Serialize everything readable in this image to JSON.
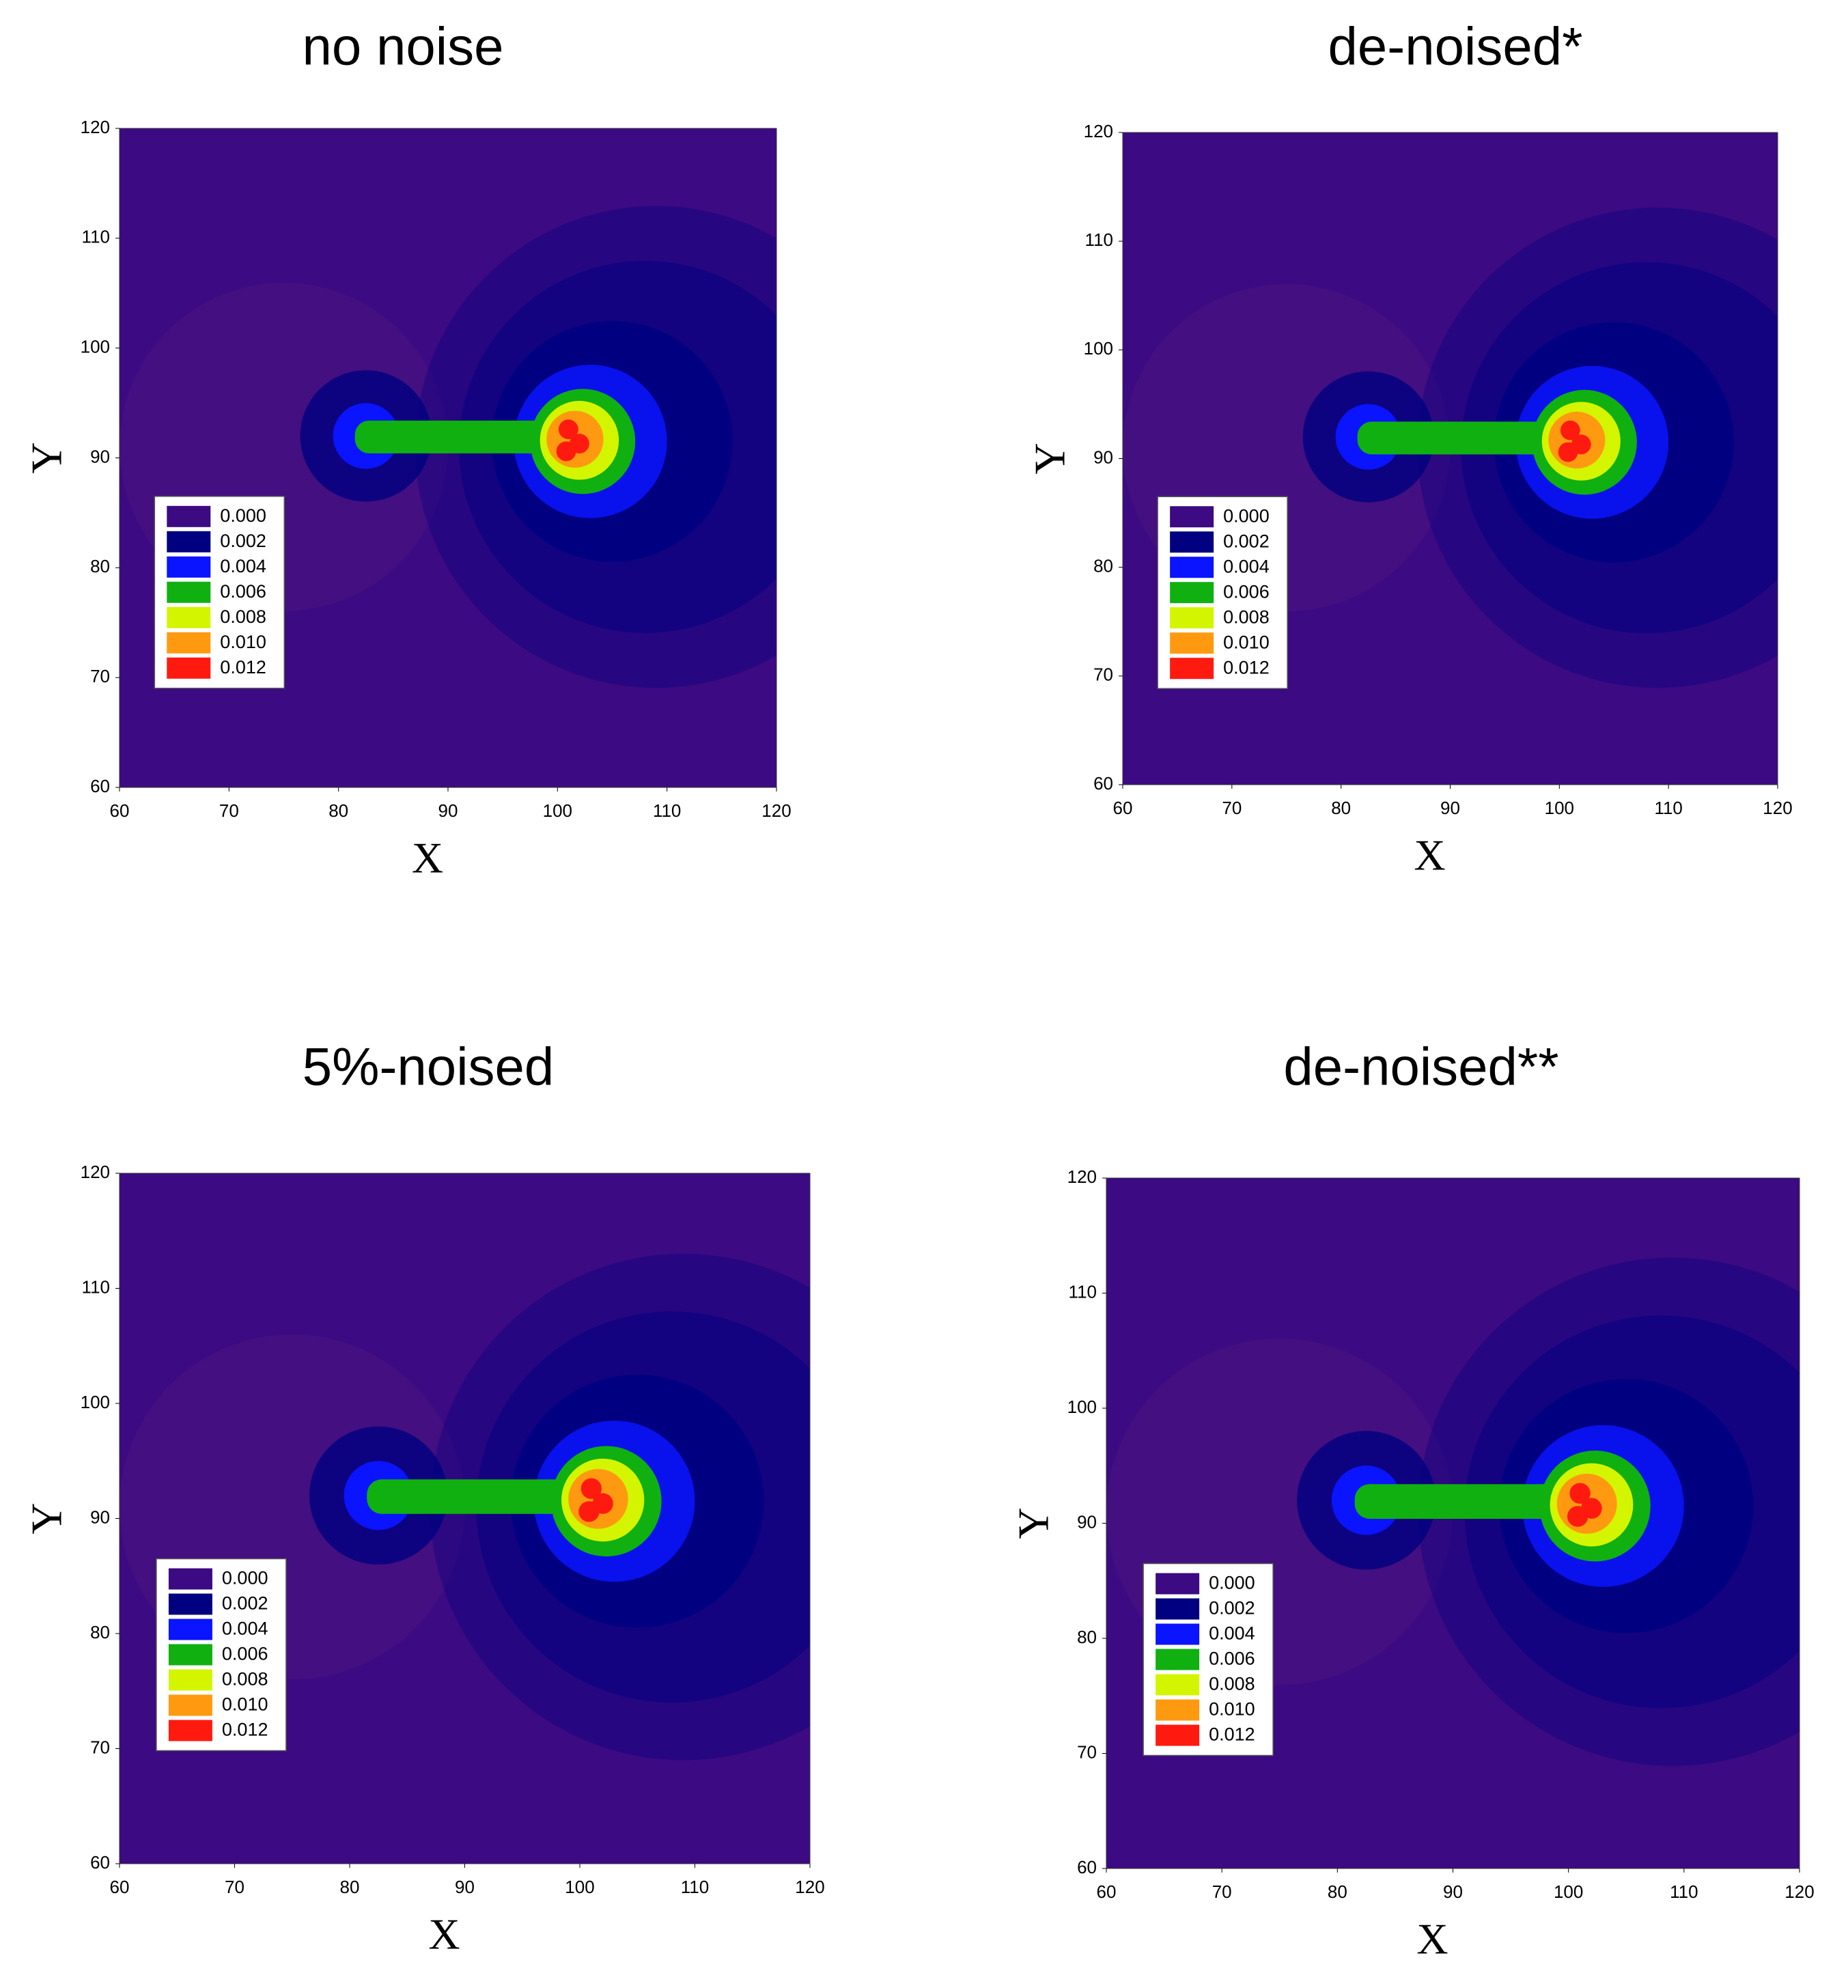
{
  "chart_data": [
    {
      "type": "contour",
      "title": "no noise",
      "xlabel": "X",
      "ylabel": "Y",
      "xlim": [
        60,
        120
      ],
      "ylim": [
        60,
        120
      ],
      "xticks": [
        60,
        70,
        80,
        90,
        100,
        110,
        120
      ],
      "yticks": [
        60,
        70,
        80,
        90,
        100,
        110,
        120
      ],
      "levels": [
        {
          "value": 0,
          "label": "0.000"
        },
        {
          "value": 0.002,
          "label": "0.002"
        },
        {
          "value": 0.004,
          "label": "0.004"
        },
        {
          "value": 0.006,
          "label": "0.006"
        },
        {
          "value": 0.008,
          "label": "0.008"
        },
        {
          "value": 0.01,
          "label": "0.010"
        },
        {
          "value": 0.012,
          "label": "0.012"
        }
      ],
      "colors": [
        "#3c0a82",
        "#000080",
        "#0a14ff",
        "#10b010",
        "#d4f500",
        "#ff9a10",
        "#ff1a10"
      ]
    },
    {
      "type": "contour",
      "title": "de-noised*",
      "xlabel": "X",
      "ylabel": "Y",
      "xlim": [
        60,
        120
      ],
      "ylim": [
        60,
        120
      ],
      "xticks": [
        60,
        70,
        80,
        90,
        100,
        110,
        120
      ],
      "yticks": [
        60,
        70,
        80,
        90,
        100,
        110,
        120
      ],
      "levels": [
        {
          "value": 0,
          "label": "0.000"
        },
        {
          "value": 0.002,
          "label": "0.002"
        },
        {
          "value": 0.004,
          "label": "0.004"
        },
        {
          "value": 0.006,
          "label": "0.006"
        },
        {
          "value": 0.008,
          "label": "0.008"
        },
        {
          "value": 0.01,
          "label": "0.010"
        },
        {
          "value": 0.012,
          "label": "0.012"
        }
      ],
      "colors": [
        "#3c0a82",
        "#000080",
        "#0a14ff",
        "#10b010",
        "#d4f500",
        "#ff9a10",
        "#ff1a10"
      ]
    },
    {
      "type": "contour",
      "title": "5%-noised",
      "xlabel": "X",
      "ylabel": "Y",
      "xlim": [
        60,
        120
      ],
      "ylim": [
        60,
        120
      ],
      "xticks": [
        60,
        70,
        80,
        90,
        100,
        110,
        120
      ],
      "yticks": [
        60,
        70,
        80,
        90,
        100,
        110,
        120
      ],
      "levels": [
        {
          "value": 0,
          "label": "0.000"
        },
        {
          "value": 0.002,
          "label": "0.002"
        },
        {
          "value": 0.004,
          "label": "0.004"
        },
        {
          "value": 0.006,
          "label": "0.006"
        },
        {
          "value": 0.008,
          "label": "0.008"
        },
        {
          "value": 0.01,
          "label": "0.010"
        },
        {
          "value": 0.012,
          "label": "0.012"
        }
      ],
      "colors": [
        "#3c0a82",
        "#000080",
        "#0a14ff",
        "#10b010",
        "#d4f500",
        "#ff9a10",
        "#ff1a10"
      ]
    },
    {
      "type": "contour",
      "title": "de-noised**",
      "xlabel": "X",
      "ylabel": "Y",
      "xlim": [
        60,
        120
      ],
      "ylim": [
        60,
        120
      ],
      "xticks": [
        60,
        70,
        80,
        90,
        100,
        110,
        120
      ],
      "yticks": [
        60,
        70,
        80,
        90,
        100,
        110,
        120
      ],
      "levels": [
        {
          "value": 0,
          "label": "0.000"
        },
        {
          "value": 0.002,
          "label": "0.002"
        },
        {
          "value": 0.004,
          "label": "0.004"
        },
        {
          "value": 0.006,
          "label": "0.006"
        },
        {
          "value": 0.008,
          "label": "0.008"
        },
        {
          "value": 0.01,
          "label": "0.010"
        },
        {
          "value": 0.012,
          "label": "0.012"
        }
      ],
      "colors": [
        "#3c0a82",
        "#000080",
        "#0a14ff",
        "#10b010",
        "#d4f500",
        "#ff9a10",
        "#ff1a10"
      ]
    }
  ]
}
